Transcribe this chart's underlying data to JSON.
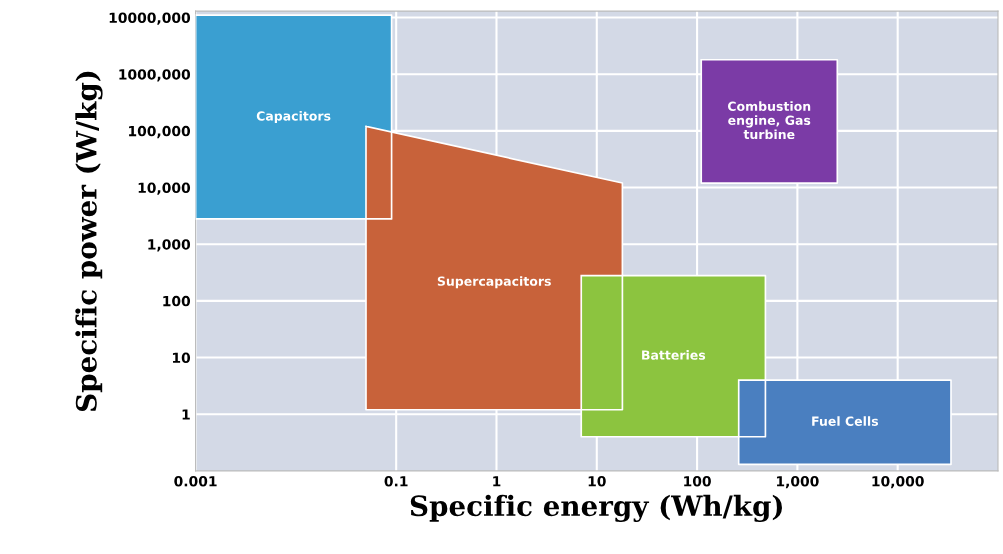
{
  "chart_data": {
    "type": "area",
    "xlabel": "Specific energy (Wh/kg)",
    "ylabel": "Specific power (W/kg)",
    "log": "xy",
    "grid": true,
    "xlim": [
      0.001,
      100000
    ],
    "ylim": [
      0.1,
      13000000
    ],
    "xticks": [
      0.001,
      0.1,
      1,
      10,
      100,
      {
        "value": 1000,
        "label": "1,000"
      },
      {
        "value": 10000,
        "label": "10,000"
      }
    ],
    "yticks": [
      1,
      10,
      100,
      {
        "value": 1000,
        "label": "1,000"
      },
      {
        "value": 10000,
        "label": "10,000"
      },
      {
        "value": 100000,
        "label": "100,000"
      },
      {
        "value": 1000000,
        "label": "1000,000"
      },
      {
        "value": 10000000,
        "label": "10000,000"
      }
    ],
    "series": [
      {
        "name": "Capacitors",
        "color": "#3a9fd1",
        "x": [
          0.001,
          0.09,
          0.09,
          0.001
        ],
        "values": [
          11000000,
          11000000,
          2800,
          2800
        ]
      },
      {
        "name": "Supercapacitors",
        "color": "#c8623a",
        "x": [
          0.05,
          18,
          18,
          0.05
        ],
        "values": [
          120000,
          12000,
          1.2,
          1.2
        ]
      },
      {
        "name": "Batteries",
        "color": "#8cc43f",
        "x": [
          7,
          480,
          480,
          7
        ],
        "values": [
          280,
          280,
          0.4,
          0.4
        ]
      },
      {
        "name": "Fuel Cells",
        "color": "#4a7fc0",
        "x": [
          260,
          34000,
          34000,
          260
        ],
        "values": [
          4,
          4,
          0.13,
          0.13
        ]
      },
      {
        "name": "Combustion engine, Gas turbine",
        "color": "#7b3ba6",
        "x": [
          110,
          2500,
          2500,
          110
        ],
        "values": [
          1800000,
          1800000,
          12000,
          12000
        ]
      }
    ]
  }
}
